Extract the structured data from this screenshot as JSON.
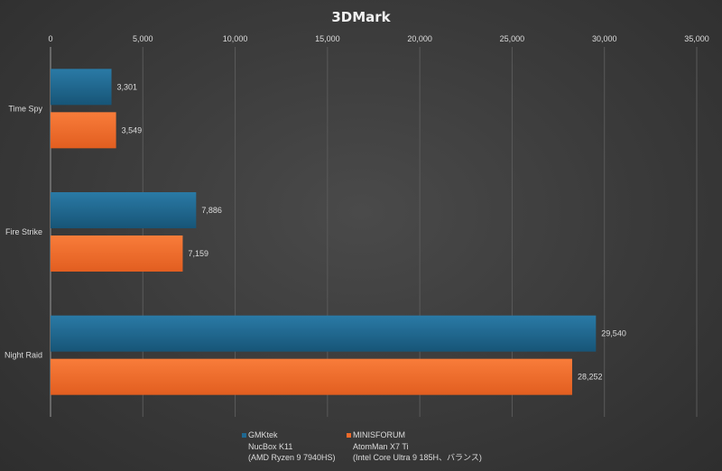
{
  "chart_data": {
    "type": "bar",
    "orientation": "horizontal",
    "title": "3DMark",
    "categories": [
      "Time Spy",
      "Fire Strike",
      "Night Raid"
    ],
    "series": [
      {
        "name": "GMKtek",
        "name_lines": [
          "NucBox K11",
          "(AMD Ryzen 9 7940HS)"
        ],
        "color": "#1f6891",
        "values": [
          3301,
          7886,
          29540
        ],
        "labels": [
          "3,301",
          "7,886",
          "29,540"
        ]
      },
      {
        "name": "MINISFORUM",
        "name_lines": [
          "AtomMan X7 Ti",
          "(Intel Core Ultra 9 185H、バランス)"
        ],
        "color": "#ee6a2a",
        "values": [
          3549,
          7159,
          28252
        ],
        "labels": [
          "3,549",
          "7,159",
          "28,252"
        ]
      }
    ],
    "xlim": [
      0,
      35000
    ],
    "x_ticks": [
      0,
      5000,
      10000,
      15000,
      20000,
      25000,
      30000,
      35000
    ],
    "x_tick_labels": [
      "0",
      "5,000",
      "10,000",
      "15,000",
      "20,000",
      "25,000",
      "30,000",
      "35,000"
    ],
    "axis_position": "top",
    "grid": true,
    "legend_position": "bottom"
  }
}
